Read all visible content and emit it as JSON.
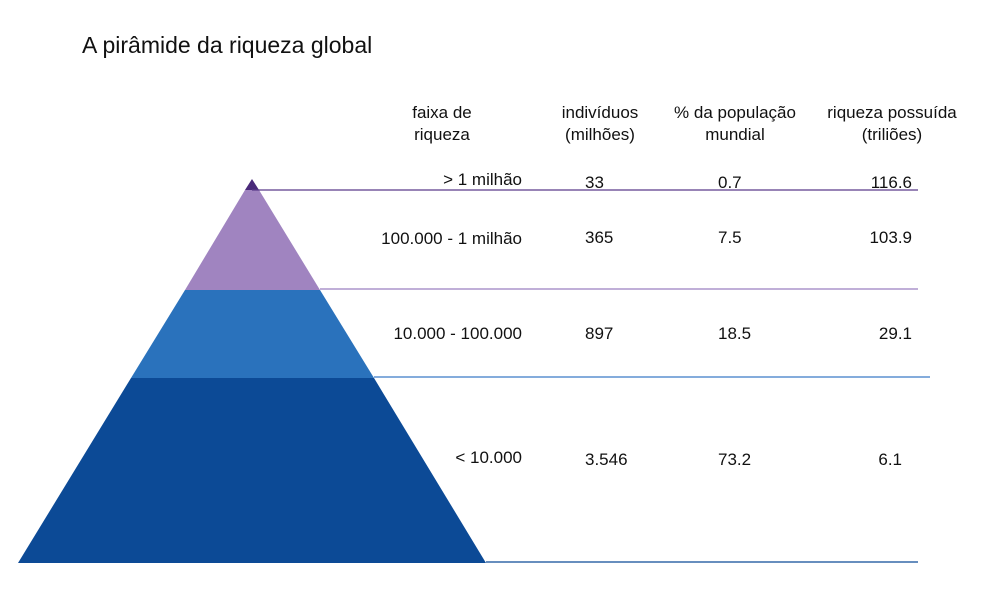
{
  "title": "A pirâmide da riqueza global",
  "headers": {
    "band": [
      "faixa de",
      "riqueza"
    ],
    "people": [
      "indivíduos",
      "(milhões)"
    ],
    "pct": [
      "% da população",
      "mundial"
    ],
    "wealth": [
      "riqueza possuída",
      "(triliões)"
    ]
  },
  "chart_data": {
    "type": "table",
    "rows": [
      {
        "band": "> 1 milhão",
        "people": "33",
        "pct": "0.7",
        "wealth": "116.6",
        "color": "#4a2a7a"
      },
      {
        "band": "100.000 - 1 milhão",
        "people": "365",
        "pct": "7.5",
        "wealth": "103.9",
        "color": "#a084c0"
      },
      {
        "band": "10.000 - 100.000",
        "people": "897",
        "pct": "18.5",
        "wealth": "29.1",
        "color": "#2a72bc"
      },
      {
        "band": "< 10.000",
        "people": "3.546",
        "pct": "73.2",
        "wealth": "6.1",
        "color": "#0c4a96"
      }
    ]
  },
  "colors": {
    "line_top": "#5a3a8a",
    "line_mid": "#9b7fc0",
    "line_low": "#3a7ac8",
    "line_bottom": "#0c4a96"
  }
}
